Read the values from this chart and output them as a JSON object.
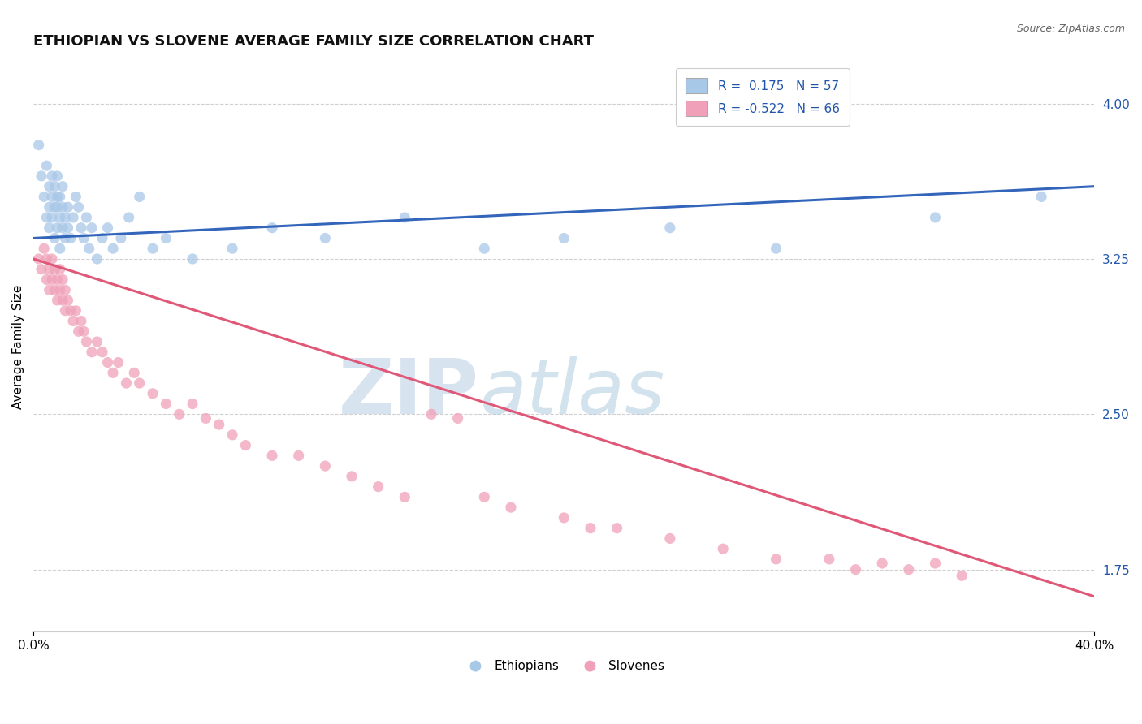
{
  "title": "ETHIOPIAN VS SLOVENE AVERAGE FAMILY SIZE CORRELATION CHART",
  "source_text": "Source: ZipAtlas.com",
  "ylabel": "Average Family Size",
  "xlim": [
    0.0,
    0.4
  ],
  "ylim": [
    1.45,
    4.2
  ],
  "yticks": [
    1.75,
    2.5,
    3.25,
    4.0
  ],
  "xticks": [
    0.0,
    0.4
  ],
  "xticklabels": [
    "0.0%",
    "40.0%"
  ],
  "background_color": "#ffffff",
  "watermark_zip": "ZIP",
  "watermark_atlas": "atlas",
  "watermark_color_zip": "#c8d8ea",
  "watermark_color_atlas": "#b0cce0",
  "grid_color": "#d0d0d0",
  "ethiopians": {
    "label": "Ethiopians",
    "color": "#a8c8e8",
    "R": 0.175,
    "N": 57,
    "line_color": "#3366bb",
    "x": [
      0.002,
      0.003,
      0.004,
      0.005,
      0.005,
      0.006,
      0.006,
      0.006,
      0.007,
      0.007,
      0.007,
      0.008,
      0.008,
      0.008,
      0.009,
      0.009,
      0.009,
      0.009,
      0.01,
      0.01,
      0.01,
      0.011,
      0.011,
      0.011,
      0.012,
      0.012,
      0.013,
      0.013,
      0.014,
      0.015,
      0.016,
      0.017,
      0.018,
      0.019,
      0.02,
      0.021,
      0.022,
      0.024,
      0.026,
      0.028,
      0.03,
      0.033,
      0.036,
      0.04,
      0.045,
      0.05,
      0.06,
      0.075,
      0.09,
      0.11,
      0.14,
      0.17,
      0.2,
      0.24,
      0.28,
      0.34,
      0.38
    ],
    "y": [
      3.8,
      3.65,
      3.55,
      3.7,
      3.45,
      3.5,
      3.6,
      3.4,
      3.55,
      3.45,
      3.65,
      3.35,
      3.5,
      3.6,
      3.4,
      3.5,
      3.55,
      3.65,
      3.3,
      3.45,
      3.55,
      3.4,
      3.5,
      3.6,
      3.35,
      3.45,
      3.4,
      3.5,
      3.35,
      3.45,
      3.55,
      3.5,
      3.4,
      3.35,
      3.45,
      3.3,
      3.4,
      3.25,
      3.35,
      3.4,
      3.3,
      3.35,
      3.45,
      3.55,
      3.3,
      3.35,
      3.25,
      3.3,
      3.4,
      3.35,
      3.45,
      3.3,
      3.35,
      3.4,
      3.3,
      3.45,
      3.55
    ]
  },
  "slovenes": {
    "label": "Slovenes",
    "color": "#f0a0b8",
    "R": -0.522,
    "N": 66,
    "line_color": "#e05878",
    "x": [
      0.002,
      0.003,
      0.004,
      0.005,
      0.005,
      0.006,
      0.006,
      0.007,
      0.007,
      0.008,
      0.008,
      0.009,
      0.009,
      0.01,
      0.01,
      0.011,
      0.011,
      0.012,
      0.012,
      0.013,
      0.014,
      0.015,
      0.016,
      0.017,
      0.018,
      0.019,
      0.02,
      0.022,
      0.024,
      0.026,
      0.028,
      0.03,
      0.032,
      0.035,
      0.038,
      0.04,
      0.045,
      0.05,
      0.055,
      0.06,
      0.065,
      0.07,
      0.075,
      0.08,
      0.09,
      0.1,
      0.11,
      0.12,
      0.13,
      0.14,
      0.15,
      0.16,
      0.17,
      0.18,
      0.2,
      0.21,
      0.22,
      0.24,
      0.26,
      0.28,
      0.3,
      0.31,
      0.32,
      0.33,
      0.34,
      0.35
    ],
    "y": [
      3.25,
      3.2,
      3.3,
      3.15,
      3.25,
      3.2,
      3.1,
      3.15,
      3.25,
      3.1,
      3.2,
      3.05,
      3.15,
      3.1,
      3.2,
      3.05,
      3.15,
      3.0,
      3.1,
      3.05,
      3.0,
      2.95,
      3.0,
      2.9,
      2.95,
      2.9,
      2.85,
      2.8,
      2.85,
      2.8,
      2.75,
      2.7,
      2.75,
      2.65,
      2.7,
      2.65,
      2.6,
      2.55,
      2.5,
      2.55,
      2.48,
      2.45,
      2.4,
      2.35,
      2.3,
      2.3,
      2.25,
      2.2,
      2.15,
      2.1,
      2.5,
      2.48,
      2.1,
      2.05,
      2.0,
      1.95,
      1.95,
      1.9,
      1.85,
      1.8,
      1.8,
      1.75,
      1.78,
      1.75,
      1.78,
      1.72
    ]
  },
  "legend_eth_color": "#a8c8e8",
  "legend_slo_color": "#f0a0b8",
  "legend_text_color": "#2255aa",
  "title_fontsize": 13,
  "axis_label_fontsize": 11,
  "tick_fontsize": 11,
  "right_tick_color": "#2255aa"
}
